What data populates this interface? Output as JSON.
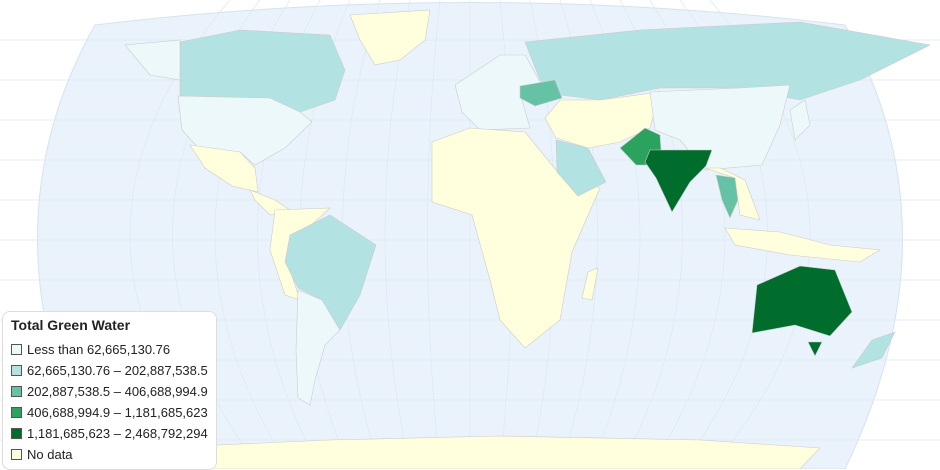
{
  "legend": {
    "title": "Total Green Water",
    "items": [
      {
        "label": "Less than 62,665,130.76",
        "color": "#edf8fb"
      },
      {
        "label": "62,665,130.76 – 202,887,538.5",
        "color": "#b2e2e2"
      },
      {
        "label": "202,887,538.5 – 406,688,994.9",
        "color": "#66c2a4"
      },
      {
        "label": "406,688,994.9 – 1,181,685,623",
        "color": "#2ca25f"
      },
      {
        "label": "1,181,685,623 – 2,468,792,294",
        "color": "#006d2c"
      },
      {
        "label": "No data",
        "color": "#ffffdd"
      }
    ]
  },
  "colors": {
    "ocean": "#eaf3fb",
    "no_data": "#ffffdd"
  }
}
